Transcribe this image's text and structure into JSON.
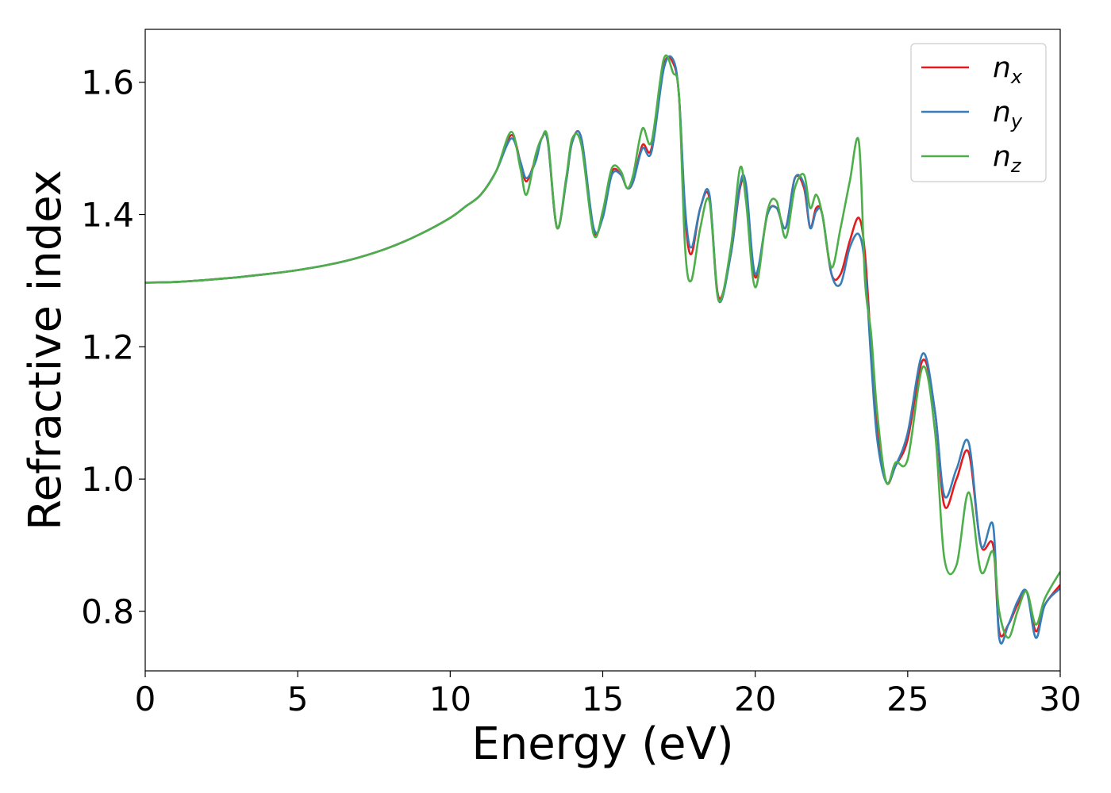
{
  "chart_data": {
    "type": "line",
    "title": "",
    "xlabel": "Energy (eV)",
    "ylabel": "Refractive index",
    "xlim": [
      0,
      30
    ],
    "ylim": [
      0.71,
      1.68
    ],
    "xticks": [
      0,
      5,
      10,
      15,
      20,
      25,
      30
    ],
    "yticks": [
      0.8,
      1.0,
      1.2,
      1.4,
      1.6
    ],
    "xtick_labels": [
      "0",
      "5",
      "10",
      "15",
      "20",
      "25",
      "30"
    ],
    "ytick_labels": [
      "0.8",
      "1.0",
      "1.2",
      "1.4",
      "1.6"
    ],
    "grid": false,
    "legend_position": "top-right",
    "series": [
      {
        "name": "n",
        "subscript": "x",
        "color": "#e41a1c",
        "x": [
          0,
          1,
          2,
          3,
          4,
          5,
          6,
          7,
          8,
          9,
          10,
          10.5,
          11,
          11.5,
          12,
          12.3,
          12.5,
          12.8,
          13,
          13.2,
          13.5,
          13.8,
          14,
          14.3,
          14.7,
          15,
          15.3,
          15.6,
          15.8,
          16,
          16.3,
          16.6,
          17,
          17.3,
          17.5,
          17.7,
          17.9,
          18.2,
          18.5,
          18.8,
          19.2,
          19.5,
          19.7,
          20,
          20.4,
          20.7,
          21,
          21.3,
          21.6,
          21.8,
          22,
          22.2,
          22.5,
          22.8,
          23.1,
          23.4,
          23.6,
          23.8,
          24,
          24.3,
          24.6,
          25,
          25.5,
          25.9,
          26.2,
          26.6,
          27,
          27.4,
          27.8,
          28,
          28.3,
          28.6,
          28.9,
          29.2,
          29.5,
          30
        ],
        "y": [
          1.297,
          1.298,
          1.301,
          1.305,
          1.31,
          1.316,
          1.324,
          1.335,
          1.35,
          1.37,
          1.395,
          1.412,
          1.43,
          1.465,
          1.52,
          1.48,
          1.45,
          1.485,
          1.515,
          1.51,
          1.38,
          1.45,
          1.51,
          1.515,
          1.375,
          1.4,
          1.465,
          1.46,
          1.44,
          1.45,
          1.505,
          1.5,
          1.625,
          1.63,
          1.58,
          1.4,
          1.34,
          1.41,
          1.425,
          1.275,
          1.34,
          1.44,
          1.44,
          1.305,
          1.4,
          1.41,
          1.38,
          1.455,
          1.44,
          1.38,
          1.41,
          1.4,
          1.31,
          1.31,
          1.36,
          1.395,
          1.34,
          1.2,
          1.08,
          0.995,
          1.02,
          1.06,
          1.18,
          1.1,
          0.96,
          1.0,
          1.04,
          0.9,
          0.9,
          0.77,
          0.78,
          0.81,
          0.83,
          0.77,
          0.81,
          0.84
        ]
      },
      {
        "name": "n",
        "subscript": "y",
        "color": "#377eb8",
        "x": [
          0,
          1,
          2,
          3,
          4,
          5,
          6,
          7,
          8,
          9,
          10,
          10.5,
          11,
          11.5,
          12,
          12.3,
          12.5,
          12.8,
          13,
          13.2,
          13.5,
          13.8,
          14,
          14.3,
          14.7,
          15,
          15.3,
          15.6,
          15.8,
          16,
          16.3,
          16.6,
          17,
          17.3,
          17.5,
          17.7,
          17.9,
          18.2,
          18.5,
          18.8,
          19.2,
          19.5,
          19.7,
          20,
          20.4,
          20.7,
          21,
          21.3,
          21.6,
          21.8,
          22,
          22.2,
          22.5,
          22.8,
          23.1,
          23.4,
          23.6,
          23.8,
          24,
          24.3,
          24.6,
          25,
          25.5,
          25.9,
          26.2,
          26.6,
          27,
          27.4,
          27.8,
          28,
          28.3,
          28.6,
          28.9,
          29.2,
          29.5,
          30
        ],
        "y": [
          1.297,
          1.298,
          1.301,
          1.305,
          1.31,
          1.316,
          1.324,
          1.335,
          1.35,
          1.37,
          1.395,
          1.412,
          1.43,
          1.465,
          1.515,
          1.48,
          1.455,
          1.48,
          1.515,
          1.51,
          1.38,
          1.45,
          1.51,
          1.515,
          1.38,
          1.395,
          1.46,
          1.46,
          1.44,
          1.45,
          1.5,
          1.495,
          1.62,
          1.635,
          1.58,
          1.41,
          1.35,
          1.41,
          1.43,
          1.27,
          1.34,
          1.445,
          1.445,
          1.31,
          1.4,
          1.41,
          1.38,
          1.455,
          1.445,
          1.38,
          1.405,
          1.4,
          1.31,
          1.295,
          1.35,
          1.37,
          1.32,
          1.18,
          1.06,
          0.995,
          1.02,
          1.07,
          1.19,
          1.1,
          0.975,
          1.015,
          1.055,
          0.9,
          0.93,
          0.76,
          0.78,
          0.815,
          0.83,
          0.76,
          0.81,
          0.835
        ]
      },
      {
        "name": "n",
        "subscript": "z",
        "color": "#4daf4a",
        "x": [
          0,
          1,
          2,
          3,
          4,
          5,
          6,
          7,
          8,
          9,
          10,
          10.5,
          11,
          11.5,
          12,
          12.3,
          12.5,
          12.8,
          13,
          13.2,
          13.5,
          13.8,
          14,
          14.3,
          14.7,
          15,
          15.3,
          15.6,
          15.8,
          16,
          16.3,
          16.6,
          17,
          17.3,
          17.5,
          17.7,
          17.9,
          18.2,
          18.5,
          18.8,
          19.2,
          19.5,
          19.7,
          20,
          20.4,
          20.7,
          21,
          21.3,
          21.6,
          21.8,
          22,
          22.2,
          22.5,
          22.8,
          23.1,
          23.4,
          23.6,
          23.8,
          24,
          24.3,
          24.6,
          25,
          25.5,
          25.9,
          26.2,
          26.6,
          27,
          27.4,
          27.8,
          28,
          28.3,
          28.6,
          28.9,
          29.2,
          29.5,
          30
        ],
        "y": [
          1.297,
          1.298,
          1.301,
          1.305,
          1.31,
          1.316,
          1.324,
          1.335,
          1.35,
          1.37,
          1.395,
          1.412,
          1.43,
          1.465,
          1.525,
          1.47,
          1.43,
          1.49,
          1.515,
          1.515,
          1.38,
          1.455,
          1.515,
          1.505,
          1.37,
          1.405,
          1.47,
          1.465,
          1.44,
          1.46,
          1.53,
          1.51,
          1.635,
          1.615,
          1.58,
          1.35,
          1.3,
          1.38,
          1.42,
          1.27,
          1.35,
          1.47,
          1.42,
          1.29,
          1.405,
          1.42,
          1.365,
          1.44,
          1.46,
          1.41,
          1.43,
          1.4,
          1.32,
          1.38,
          1.45,
          1.51,
          1.3,
          1.22,
          1.1,
          0.995,
          1.025,
          1.03,
          1.17,
          1.07,
          0.88,
          0.87,
          0.98,
          0.86,
          0.89,
          0.8,
          0.76,
          0.8,
          0.83,
          0.78,
          0.82,
          0.86
        ]
      }
    ]
  }
}
